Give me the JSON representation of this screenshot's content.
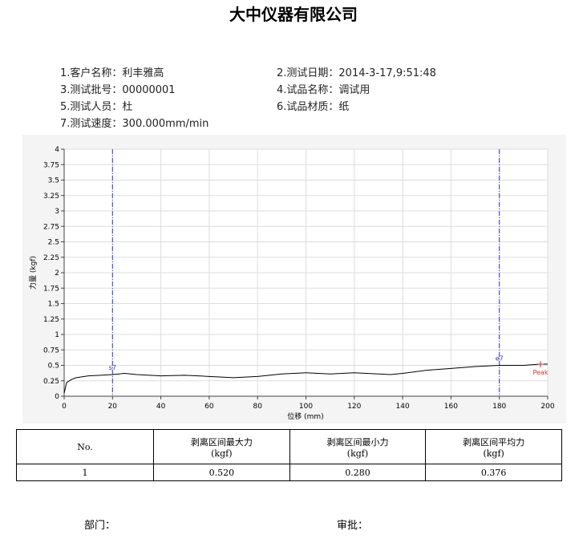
{
  "header": {
    "title": "大中仪器有限公司"
  },
  "info": [
    "1.客户名称：利丰雅高",
    "2.测试日期：2014-3-17,9:51:48",
    "3.测试批号：00000001",
    "4.试品名称：调试用",
    "5.测试人员：杜",
    "6.试品材质：纸",
    "7.测试速度：300.000mm/min"
  ],
  "chart_data": {
    "type": "line",
    "x_label": "位移 (mm)",
    "y_label": "力量 (kgf)",
    "x": [
      0,
      1,
      3,
      5,
      10,
      15,
      20,
      25,
      30,
      40,
      50,
      60,
      70,
      80,
      90,
      100,
      110,
      120,
      130,
      135,
      140,
      150,
      160,
      170,
      180,
      190,
      197,
      200
    ],
    "series": [
      {
        "name": "力量",
        "color": "#000000",
        "values": [
          0.05,
          0.22,
          0.27,
          0.3,
          0.33,
          0.34,
          0.35,
          0.37,
          0.35,
          0.33,
          0.34,
          0.32,
          0.3,
          0.32,
          0.36,
          0.38,
          0.36,
          0.38,
          0.36,
          0.35,
          0.37,
          0.42,
          0.45,
          0.48,
          0.5,
          0.5,
          0.52,
          0.52
        ]
      }
    ],
    "markers": [
      {
        "label": "s7",
        "x": 20,
        "color": "#3333cc"
      },
      {
        "label": "e7",
        "x": 180,
        "color": "#3333cc"
      }
    ],
    "peak": {
      "label": "Peak",
      "x": 197,
      "y": 0.52,
      "color": "#cc3333"
    },
    "xlim": [
      0,
      200
    ],
    "xticks": [
      0,
      20,
      40,
      60,
      80,
      100,
      120,
      140,
      160,
      180,
      200
    ],
    "ylim": [
      0,
      4
    ],
    "yticks": [
      0,
      0.25,
      0.5,
      0.75,
      1,
      1.25,
      1.5,
      1.75,
      2,
      2.25,
      2.5,
      2.75,
      3,
      3.25,
      3.5,
      3.75,
      4
    ],
    "grid": true
  },
  "table": {
    "header": [
      [
        "No."
      ],
      [
        "剥离区间最大力",
        "(kgf)"
      ],
      [
        "剥离区间最小力",
        "(kgf)"
      ],
      [
        "剥离区间平均力",
        "(kgf)"
      ]
    ],
    "rows": [
      [
        "1",
        "0.520",
        "0.280",
        "0.376"
      ]
    ]
  },
  "footer": [
    "部门：",
    "审批："
  ]
}
